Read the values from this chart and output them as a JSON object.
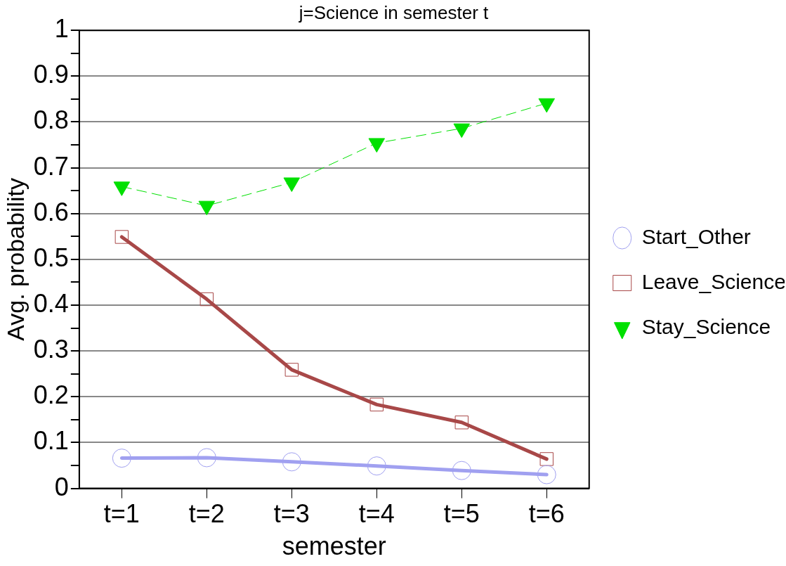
{
  "chart_data": {
    "type": "line",
    "title": "j=Science in semester t",
    "xlabel": "semester",
    "ylabel": "Avg. probability",
    "categories": [
      "t=1",
      "t=2",
      "t=3",
      "t=4",
      "t=5",
      "t=6"
    ],
    "series": [
      {
        "name": "Start_Other",
        "color": "#a0a0f0",
        "marker": "circle",
        "line_style": "solid",
        "values": [
          0.066,
          0.067,
          0.058,
          0.049,
          0.039,
          0.03
        ]
      },
      {
        "name": "Leave_Science",
        "color": "#a84848",
        "marker": "square",
        "line_style": "solid",
        "values": [
          0.549,
          0.413,
          0.259,
          0.183,
          0.144,
          0.064
        ]
      },
      {
        "name": "Stay_Science",
        "color": "#00e000",
        "marker": "triangle",
        "line_style": "dashed",
        "values": [
          0.659,
          0.617,
          0.668,
          0.754,
          0.786,
          0.841
        ]
      }
    ],
    "ylim": [
      0,
      1
    ],
    "yticks": [
      0,
      {
        "value": 0.05,
        "label": null
      },
      0.1,
      {
        "value": 0.15,
        "label": null
      },
      0.2,
      {
        "value": 0.25,
        "label": null
      },
      0.3,
      {
        "value": 0.35,
        "label": null
      },
      0.4,
      {
        "value": 0.45,
        "label": null
      },
      0.5,
      {
        "value": 0.55,
        "label": null
      },
      0.6,
      {
        "value": 0.65,
        "label": null
      },
      0.7,
      {
        "value": 0.75,
        "label": null
      },
      0.8,
      {
        "value": 0.85,
        "label": null
      },
      0.9,
      {
        "value": 0.95,
        "label": null
      },
      1
    ],
    "grid": "y",
    "legend": "right"
  }
}
